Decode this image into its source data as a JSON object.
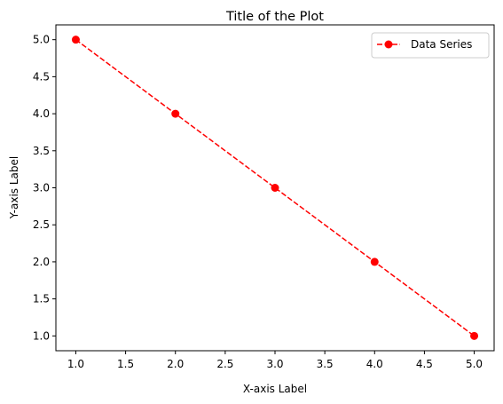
{
  "chart_data": {
    "type": "line",
    "title": "Title of the Plot",
    "xlabel": "X-axis Label",
    "ylabel": "Y-axis Label",
    "x": [
      1,
      2,
      3,
      4,
      5
    ],
    "series": [
      {
        "name": "Data Series",
        "values": [
          5,
          4,
          3,
          2,
          1
        ],
        "color": "#ff0000",
        "line_style": "dashed",
        "marker": "circle"
      }
    ],
    "xlim": [
      0.8,
      5.2
    ],
    "ylim": [
      0.8,
      5.2
    ],
    "xticks": [
      "1.0",
      "1.5",
      "2.0",
      "2.5",
      "3.0",
      "3.5",
      "4.0",
      "4.5",
      "5.0"
    ],
    "yticks": [
      "1.0",
      "1.5",
      "2.0",
      "2.5",
      "3.0",
      "3.5",
      "4.0",
      "4.5",
      "5.0"
    ],
    "grid": false,
    "legend_position": "top-right"
  }
}
